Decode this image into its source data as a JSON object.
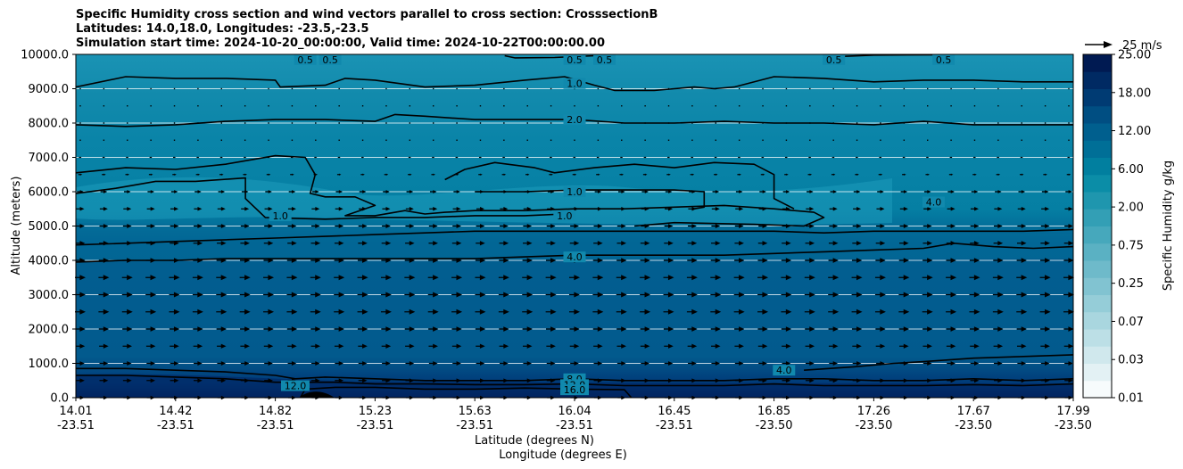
{
  "titles": {
    "line1": "Specific Humidity cross section and wind vectors parallel to cross section: CrosssectionB",
    "line2": "Latitudes: 14.0,18.0, Longitudes: -23.5,-23.5",
    "line3": "Simulation start time: 2024-10-20_00:00:00, Valid time: 2024-10-22T00:00:00.00"
  },
  "chart_data": {
    "type": "contourf_cross_section",
    "title": "Specific Humidity cross section and wind vectors parallel to cross section: CrosssectionB",
    "ylabel": "Altitude (meters)",
    "xlabel_lat": "Latitude (degrees N)",
    "xlabel_lon": "Longitude (degrees E)",
    "ylim": [
      0,
      10000
    ],
    "yticks": [
      0,
      1000,
      2000,
      3000,
      4000,
      5000,
      6000,
      7000,
      8000,
      9000,
      10000
    ],
    "ytick_labels": [
      "0.0",
      "1000.0",
      "2000.0",
      "3000.0",
      "4000.0",
      "5000.0",
      "6000.0",
      "7000.0",
      "8000.0",
      "9000.0",
      "10000.0"
    ],
    "xticks_lat": [
      "14.01",
      "14.42",
      "14.82",
      "15.23",
      "15.63",
      "16.04",
      "16.45",
      "16.85",
      "17.26",
      "17.67",
      "17.99"
    ],
    "xticks_lon": [
      "-23.51",
      "-23.51",
      "-23.51",
      "-23.51",
      "-23.51",
      "-23.51",
      "-23.51",
      "-23.50",
      "-23.50",
      "-23.50",
      "-23.50"
    ],
    "grid": "horizontal",
    "colorbar": {
      "label": "Specific Humidity g/kg",
      "tick_labels": [
        "0.01",
        "0.03",
        "0.07",
        "0.25",
        "0.75",
        "2.00",
        "6.00",
        "12.00",
        "18.00",
        "25.00"
      ],
      "levels": 20,
      "colors": [
        "#f7fbfc",
        "#e3f1f4",
        "#d0e8ed",
        "#bcdfe6",
        "#a9d6df",
        "#95cdd8",
        "#81c3d1",
        "#6ebaca",
        "#5ab1c3",
        "#46a8bc",
        "#339fb5",
        "#1f96ae",
        "#0b8da7",
        "#017f9f",
        "#006f97",
        "#005f8e",
        "#004e82",
        "#003b73",
        "#002a63",
        "#001a52"
      ]
    },
    "quiver_key": "25 m/s",
    "contour_labels": [
      {
        "text": "0.5",
        "x": 0.23,
        "y": 9850
      },
      {
        "text": "0.5",
        "x": 0.255,
        "y": 9850
      },
      {
        "text": "0.5",
        "x": 0.5,
        "y": 9850
      },
      {
        "text": "0.5",
        "x": 0.53,
        "y": 9850
      },
      {
        "text": "0.5",
        "x": 0.76,
        "y": 9850
      },
      {
        "text": "0.5",
        "x": 0.87,
        "y": 9850
      },
      {
        "text": "1.0",
        "x": 0.5,
        "y": 9150
      },
      {
        "text": "2.0",
        "x": 0.5,
        "y": 8100
      },
      {
        "text": "1.0",
        "x": 0.5,
        "y": 6000
      },
      {
        "text": "1.0",
        "x": 0.49,
        "y": 5300
      },
      {
        "text": "1.0",
        "x": 0.205,
        "y": 5300
      },
      {
        "text": "4.0",
        "x": 0.5,
        "y": 4100
      },
      {
        "text": "4.0",
        "x": 0.86,
        "y": 5700
      },
      {
        "text": "4.0",
        "x": 0.71,
        "y": 800
      },
      {
        "text": "8.0",
        "x": 0.5,
        "y": 550
      },
      {
        "text": "12.0",
        "x": 0.5,
        "y": 380
      },
      {
        "text": "16.0",
        "x": 0.5,
        "y": 230
      },
      {
        "text": "12.0",
        "x": 0.22,
        "y": 350
      }
    ],
    "contours": [
      {
        "level": 0.5,
        "points": [
          [
            0.43,
            9960
          ],
          [
            0.44,
            9900
          ],
          [
            0.48,
            9910
          ],
          [
            0.52,
            9960
          ]
        ]
      },
      {
        "level": 0.5,
        "points": [
          [
            0.76,
            9930
          ],
          [
            0.8,
            9980
          ],
          [
            0.87,
            9990
          ]
        ]
      },
      {
        "level": 1.0,
        "points": [
          [
            0,
            9050
          ],
          [
            0.05,
            9350
          ],
          [
            0.1,
            9300
          ],
          [
            0.15,
            9300
          ],
          [
            0.2,
            9250
          ],
          [
            0.205,
            9050
          ],
          [
            0.25,
            9100
          ],
          [
            0.27,
            9300
          ],
          [
            0.3,
            9250
          ],
          [
            0.35,
            9050
          ],
          [
            0.4,
            9100
          ],
          [
            0.45,
            9250
          ],
          [
            0.49,
            9350
          ],
          [
            0.52,
            9100
          ],
          [
            0.54,
            8950
          ],
          [
            0.58,
            8950
          ],
          [
            0.6,
            9000
          ],
          [
            0.62,
            9050
          ],
          [
            0.64,
            9000
          ],
          [
            0.66,
            9050
          ],
          [
            0.7,
            9350
          ],
          [
            0.75,
            9300
          ],
          [
            0.8,
            9200
          ],
          [
            0.85,
            9250
          ],
          [
            0.9,
            9250
          ],
          [
            0.95,
            9200
          ],
          [
            1,
            9200
          ]
        ]
      },
      {
        "level": 2.0,
        "points": [
          [
            0,
            7950
          ],
          [
            0.05,
            7900
          ],
          [
            0.1,
            7950
          ],
          [
            0.15,
            8050
          ],
          [
            0.2,
            8100
          ],
          [
            0.25,
            8100
          ],
          [
            0.3,
            8050
          ],
          [
            0.32,
            8250
          ],
          [
            0.35,
            8200
          ],
          [
            0.4,
            8100
          ],
          [
            0.45,
            8100
          ],
          [
            0.5,
            8100
          ],
          [
            0.55,
            8000
          ],
          [
            0.6,
            8000
          ],
          [
            0.65,
            8050
          ],
          [
            0.7,
            8000
          ],
          [
            0.75,
            8000
          ],
          [
            0.8,
            7950
          ],
          [
            0.85,
            8050
          ],
          [
            0.9,
            7950
          ],
          [
            0.95,
            7950
          ],
          [
            1,
            7950
          ]
        ]
      },
      {
        "level": 1.0,
        "points": [
          [
            0,
            5950
          ],
          [
            0.04,
            6100
          ],
          [
            0.08,
            6300
          ],
          [
            0.12,
            6300
          ],
          [
            0.17,
            6400
          ],
          [
            0.17,
            5800
          ],
          [
            0.19,
            5250
          ],
          [
            0.25,
            5200
          ],
          [
            0.3,
            5250
          ],
          [
            0.35,
            5250
          ],
          [
            0.4,
            5300
          ],
          [
            0.45,
            5300
          ],
          [
            0.49,
            5350
          ]
        ]
      },
      {
        "level": 1.0,
        "points": [
          [
            0,
            6550
          ],
          [
            0.05,
            6700
          ],
          [
            0.1,
            6650
          ],
          [
            0.15,
            6800
          ],
          [
            0.2,
            7050
          ],
          [
            0.23,
            7000
          ],
          [
            0.24,
            6500
          ],
          [
            0.235,
            5950
          ],
          [
            0.25,
            5850
          ],
          [
            0.28,
            5850
          ],
          [
            0.3,
            5600
          ],
          [
            0.27,
            5300
          ],
          [
            0.3,
            5300
          ],
          [
            0.33,
            5450
          ],
          [
            0.35,
            5350
          ],
          [
            0.37,
            5400
          ],
          [
            0.4,
            5450
          ],
          [
            0.45,
            5450
          ],
          [
            0.5,
            5500
          ],
          [
            0.55,
            5500
          ],
          [
            0.6,
            5550
          ],
          [
            0.65,
            5600
          ],
          [
            0.7,
            5500
          ],
          [
            0.74,
            5400
          ],
          [
            0.75,
            5250
          ],
          [
            0.73,
            5000
          ],
          [
            0.68,
            5050
          ],
          [
            0.6,
            5100
          ],
          [
            0.56,
            5000
          ]
        ]
      },
      {
        "level": 1.0,
        "points": [
          [
            0.37,
            6350
          ],
          [
            0.39,
            6650
          ],
          [
            0.42,
            6850
          ],
          [
            0.46,
            6700
          ],
          [
            0.48,
            6550
          ],
          [
            0.52,
            6700
          ],
          [
            0.56,
            6800
          ],
          [
            0.6,
            6700
          ],
          [
            0.64,
            6850
          ],
          [
            0.68,
            6800
          ],
          [
            0.7,
            6500
          ],
          [
            0.7,
            5800
          ],
          [
            0.72,
            5500
          ]
        ]
      },
      {
        "level": 1.0,
        "points": [
          [
            0.4,
            6000
          ],
          [
            0.45,
            6000
          ],
          [
            0.5,
            6050
          ],
          [
            0.55,
            6050
          ],
          [
            0.6,
            6050
          ],
          [
            0.63,
            6000
          ],
          [
            0.63,
            5550
          ],
          [
            0.62,
            5500
          ]
        ]
      },
      {
        "level": 4.0,
        "points": [
          [
            0,
            4450
          ],
          [
            0.05,
            4500
          ],
          [
            0.1,
            4550
          ],
          [
            0.15,
            4600
          ],
          [
            0.2,
            4650
          ],
          [
            0.25,
            4700
          ],
          [
            0.3,
            4750
          ],
          [
            0.35,
            4800
          ],
          [
            0.4,
            4850
          ],
          [
            0.45,
            4850
          ],
          [
            0.5,
            4850
          ],
          [
            0.55,
            4850
          ],
          [
            0.6,
            4850
          ],
          [
            0.65,
            4850
          ],
          [
            0.7,
            4850
          ],
          [
            0.75,
            4800
          ],
          [
            0.8,
            4850
          ],
          [
            0.85,
            4850
          ],
          [
            0.9,
            4850
          ],
          [
            0.95,
            4850
          ],
          [
            1,
            4900
          ]
        ]
      },
      {
        "level": 4.0,
        "points": [
          [
            0,
            3950
          ],
          [
            0.05,
            4000
          ],
          [
            0.1,
            4000
          ],
          [
            0.15,
            4050
          ],
          [
            0.2,
            4050
          ],
          [
            0.25,
            4050
          ],
          [
            0.3,
            4050
          ],
          [
            0.35,
            4050
          ],
          [
            0.4,
            4050
          ],
          [
            0.45,
            4100
          ],
          [
            0.5,
            4150
          ],
          [
            0.55,
            4150
          ],
          [
            0.6,
            4150
          ],
          [
            0.65,
            4150
          ],
          [
            0.7,
            4200
          ],
          [
            0.75,
            4250
          ],
          [
            0.8,
            4300
          ],
          [
            0.85,
            4350
          ],
          [
            0.88,
            4500
          ],
          [
            0.92,
            4400
          ],
          [
            0.96,
            4350
          ],
          [
            1,
            4400
          ]
        ]
      },
      {
        "level": 4.0,
        "points": [
          [
            0.73,
            800
          ],
          [
            0.78,
            900
          ],
          [
            0.82,
            1000
          ],
          [
            0.85,
            1050
          ],
          [
            0.9,
            1150
          ],
          [
            0.95,
            1200
          ],
          [
            1,
            1250
          ]
        ]
      },
      {
        "level": 8.0,
        "points": [
          [
            0,
            850
          ],
          [
            0.05,
            850
          ],
          [
            0.1,
            800
          ],
          [
            0.15,
            750
          ],
          [
            0.2,
            650
          ],
          [
            0.22,
            550
          ],
          [
            0.25,
            600
          ],
          [
            0.3,
            550
          ],
          [
            0.35,
            500
          ],
          [
            0.4,
            500
          ],
          [
            0.45,
            500
          ],
          [
            0.5,
            550
          ],
          [
            0.55,
            500
          ],
          [
            0.6,
            500
          ],
          [
            0.65,
            500
          ],
          [
            0.7,
            550
          ],
          [
            0.75,
            550
          ],
          [
            0.8,
            500
          ],
          [
            0.85,
            500
          ],
          [
            0.9,
            550
          ],
          [
            0.95,
            500
          ],
          [
            1,
            550
          ]
        ]
      },
      {
        "level": 12.0,
        "points": [
          [
            0,
            650
          ],
          [
            0.05,
            650
          ],
          [
            0.1,
            600
          ],
          [
            0.15,
            550
          ],
          [
            0.2,
            450
          ],
          [
            0.23,
            450
          ],
          [
            0.26,
            450
          ],
          [
            0.3,
            400
          ],
          [
            0.35,
            400
          ],
          [
            0.4,
            380
          ],
          [
            0.45,
            380
          ],
          [
            0.5,
            400
          ],
          [
            0.55,
            350
          ],
          [
            0.6,
            350
          ],
          [
            0.65,
            350
          ],
          [
            0.7,
            400
          ],
          [
            0.75,
            350
          ],
          [
            0.8,
            350
          ],
          [
            0.85,
            350
          ],
          [
            0.9,
            380
          ],
          [
            0.95,
            350
          ],
          [
            1,
            400
          ]
        ]
      },
      {
        "level": 16.0,
        "points": [
          [
            0.225,
            0
          ],
          [
            0.23,
            250
          ],
          [
            0.26,
            300
          ],
          [
            0.3,
            300
          ],
          [
            0.35,
            250
          ],
          [
            0.4,
            250
          ],
          [
            0.45,
            280
          ],
          [
            0.5,
            250
          ],
          [
            0.55,
            230
          ],
          [
            0.557,
            0
          ]
        ]
      }
    ],
    "wind_vectors": {
      "columns": 43,
      "rows": [
        9000,
        8500,
        8000,
        7500,
        7000,
        6500,
        6000,
        5500,
        5000,
        4500,
        4000,
        3500,
        3000,
        2500,
        2000,
        1500,
        1000,
        500,
        0
      ],
      "relative_speed": [
        0.05,
        0.05,
        0.08,
        0.1,
        0.2,
        0.3,
        0.5,
        0.6,
        0.65,
        0.7,
        0.75,
        0.8,
        0.8,
        0.8,
        0.75,
        0.7,
        0.65,
        0.65,
        0.6
      ]
    }
  }
}
